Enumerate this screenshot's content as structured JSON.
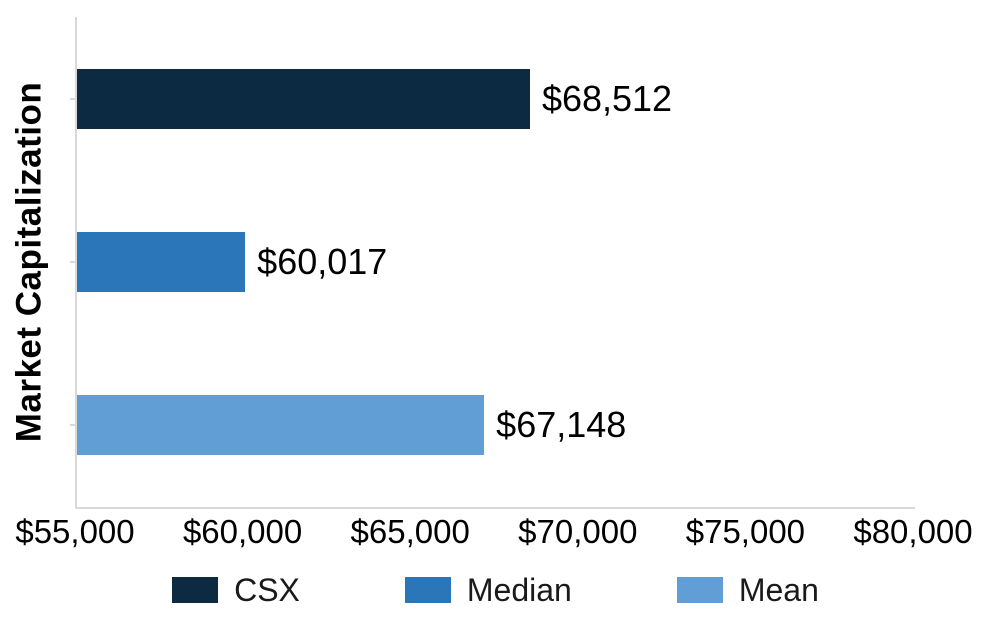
{
  "chart_data": {
    "type": "bar",
    "orientation": "horizontal",
    "title": "",
    "xlabel": "",
    "ylabel": "Market Capitalization",
    "xlim": [
      55000,
      80000
    ],
    "xticks": [
      55000,
      60000,
      65000,
      70000,
      75000,
      80000
    ],
    "xtick_labels": [
      "$55,000",
      "$60,000",
      "$65,000",
      "$70,000",
      "$75,000",
      "$80,000"
    ],
    "grid": false,
    "legend_position": "bottom",
    "series": [
      {
        "name": "CSX",
        "value": 68512,
        "label": "$68,512",
        "color": "#0d2a43"
      },
      {
        "name": "Median",
        "value": 60017,
        "label": "$60,017",
        "color": "#2a76b8"
      },
      {
        "name": "Mean",
        "value": 67148,
        "label": "$67,148",
        "color": "#619ed6"
      }
    ],
    "colors": {
      "axis_line": "#d9d9d9",
      "text": "#000000"
    }
  }
}
